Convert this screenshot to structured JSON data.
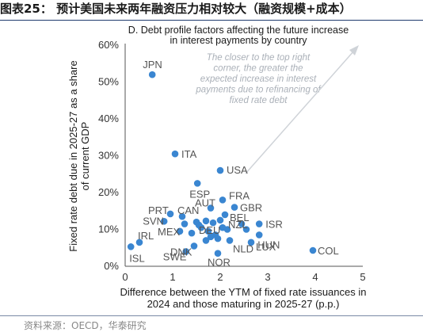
{
  "figure": {
    "title": "图表25：  预计美国未来两年融资压力相对较大（融资规模+成本）",
    "source": "资料来源：OECD，华泰研究"
  },
  "chart_data": {
    "type": "scatter",
    "title_lines": [
      "D. Debt profile factors affecting the future increase",
      "in interest payments by country"
    ],
    "xlabel_lines": [
      "Difference between the YTM of fixed rate issuances in",
      "2024 and those maturing in 2025-27 (p.p.)"
    ],
    "ylabel_lines": [
      "Fixed rate debt due in 2025-27 as a share",
      "of current GDP"
    ],
    "xlim": [
      0,
      5
    ],
    "ylim": [
      0,
      60
    ],
    "x_ticks": [
      "0",
      "1",
      "2",
      "3",
      "4",
      "5"
    ],
    "y_ticks": [
      "0%",
      "10%",
      "20%",
      "30%",
      "40%",
      "50%",
      "60%"
    ],
    "grid": false,
    "marker_color": "#3a86d1",
    "annotation_lines": [
      "The closer to the top right",
      "corner, the greater the",
      "expected increase in interest",
      "payments due to refinancing of",
      "fixed rate debt"
    ],
    "labeled_points": [
      {
        "label": "JPN",
        "x": 0.57,
        "y": 52
      },
      {
        "label": "ITA",
        "x": 1.05,
        "y": 30.5
      },
      {
        "label": "USA",
        "x": 2.0,
        "y": 26
      },
      {
        "label": "ESP",
        "x": 1.52,
        "y": 22.5
      },
      {
        "label": "FRA",
        "x": 2.05,
        "y": 18
      },
      {
        "label": "GBR",
        "x": 2.3,
        "y": 16
      },
      {
        "label": "AUT",
        "x": 1.8,
        "y": 15.8
      },
      {
        "label": "BEL",
        "x": 2.1,
        "y": 14
      },
      {
        "label": "PRT",
        "x": 0.95,
        "y": 14.2
      },
      {
        "label": "CAN",
        "x": 1.2,
        "y": 13.5
      },
      {
        "label": "SVN",
        "x": 0.82,
        "y": 12.2
      },
      {
        "label": "ISR",
        "x": 2.82,
        "y": 11.5
      },
      {
        "label": "NZL",
        "x": 2.05,
        "y": 10.5
      },
      {
        "label": "DEU",
        "x": 1.6,
        "y": 10.5
      },
      {
        "label": "HUN",
        "x": 2.82,
        "y": 8.5
      },
      {
        "label": "IRL",
        "x": 0.3,
        "y": 6.5
      },
      {
        "label": "MEX",
        "x": 1.15,
        "y": 9.5
      },
      {
        "label": "NLD",
        "x": 2.2,
        "y": 7
      },
      {
        "label": "LUX",
        "x": 2.65,
        "y": 6.5
      },
      {
        "label": "DNK",
        "x": 1.45,
        "y": 5.5
      },
      {
        "label": "ISL",
        "x": 0.12,
        "y": 5.3
      },
      {
        "label": "COL",
        "x": 3.95,
        "y": 4.3
      },
      {
        "label": "SWE",
        "x": 1.28,
        "y": 4
      },
      {
        "label": "NOR",
        "x": 1.95,
        "y": 3.5
      }
    ],
    "unlabeled_points": [
      {
        "x": 1.25,
        "y": 11.5
      },
      {
        "x": 1.4,
        "y": 9
      },
      {
        "x": 1.5,
        "y": 12
      },
      {
        "x": 1.55,
        "y": 11.2
      },
      {
        "x": 1.7,
        "y": 12.3
      },
      {
        "x": 1.75,
        "y": 9.5
      },
      {
        "x": 1.85,
        "y": 11.8
      },
      {
        "x": 1.9,
        "y": 8.5
      },
      {
        "x": 1.95,
        "y": 7.5
      },
      {
        "x": 2.0,
        "y": 12.5
      },
      {
        "x": 1.7,
        "y": 7
      },
      {
        "x": 1.8,
        "y": 8
      },
      {
        "x": 2.15,
        "y": 10
      },
      {
        "x": 2.45,
        "y": 11.5
      },
      {
        "x": 2.55,
        "y": 10
      }
    ]
  }
}
